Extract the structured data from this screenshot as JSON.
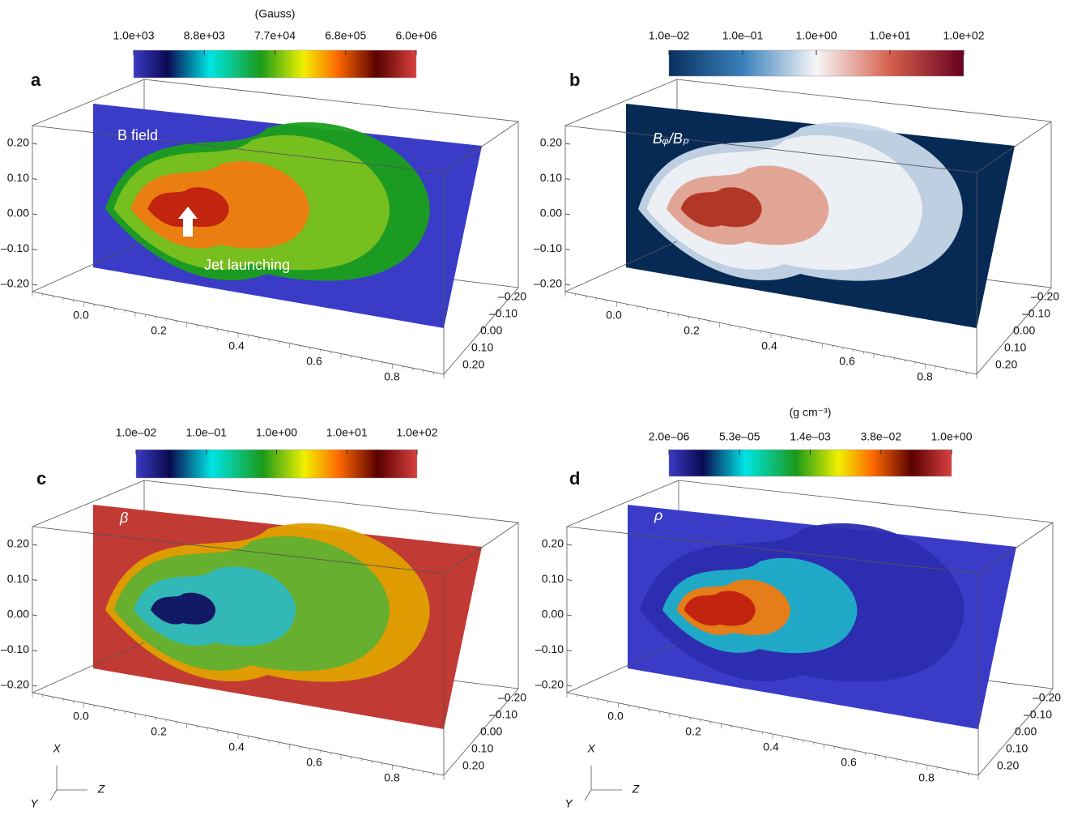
{
  "panels": [
    {
      "label": "a",
      "colorbar_title": "(Gauss)",
      "colorbar_ticks": [
        "1.0e+03",
        "8.8e+03",
        "7.7e+04",
        "6.8e+05",
        "6.0e+06"
      ],
      "annotations": [
        "B field",
        "Jet launching"
      ],
      "y_ticks": [
        "0.20",
        "0.10",
        "0.00",
        "–0.10",
        "–0.20"
      ],
      "x_ticks": [
        "0.0",
        "0.2",
        "0.4",
        "0.6",
        "0.8"
      ],
      "depth_ticks": [
        "–0.20",
        "–0.10",
        "0.00",
        "0.10",
        "0.20"
      ]
    },
    {
      "label": "b",
      "colorbar_ticks": [
        "1.0e–02",
        "1.0e–01",
        "1.0e+00",
        "1.0e+01",
        "1.0e+02"
      ],
      "annotations": [
        "Bᵩ/Bₚ"
      ],
      "y_ticks": [
        "0.20",
        "0.10",
        "0.00",
        "–0.10",
        "–0.20"
      ],
      "x_ticks": [
        "0.0",
        "0.2",
        "0.4",
        "0.6",
        "0.8"
      ],
      "depth_ticks": [
        "–0.20",
        "–0.10",
        "0.00",
        "0.10",
        "0.20"
      ]
    },
    {
      "label": "c",
      "colorbar_ticks": [
        "1.0e–02",
        "1.0e–01",
        "1.0e+00",
        "1.0e+01",
        "1.0e+02"
      ],
      "annotations": [
        "β"
      ],
      "y_ticks": [
        "0.20",
        "0.10",
        "0.00",
        "–0.10",
        "–0.20"
      ],
      "x_ticks": [
        "0.0",
        "0.2",
        "0.4",
        "0.6",
        "0.8"
      ],
      "depth_ticks": [
        "–0.20",
        "–0.10",
        "0.00",
        "0.10",
        "0.20"
      ],
      "triad": [
        "X",
        "Y",
        "Z"
      ]
    },
    {
      "label": "d",
      "colorbar_title": "(g cm⁻³)",
      "colorbar_ticks": [
        "2.0e–06",
        "5.3e–05",
        "1.4e–03",
        "3.8e–02",
        "1.0e+00"
      ],
      "annotations": [
        "ρ"
      ],
      "y_ticks": [
        "0.20",
        "0.10",
        "0.00",
        "–0.10",
        "–0.20"
      ],
      "x_ticks": [
        "0.0",
        "0.2",
        "0.4",
        "0.6",
        "0.8"
      ],
      "depth_ticks": [
        "–0.20",
        "–0.10",
        "0.00",
        "0.10",
        "0.20"
      ],
      "triad": [
        "X",
        "Y",
        "Z"
      ]
    }
  ]
}
